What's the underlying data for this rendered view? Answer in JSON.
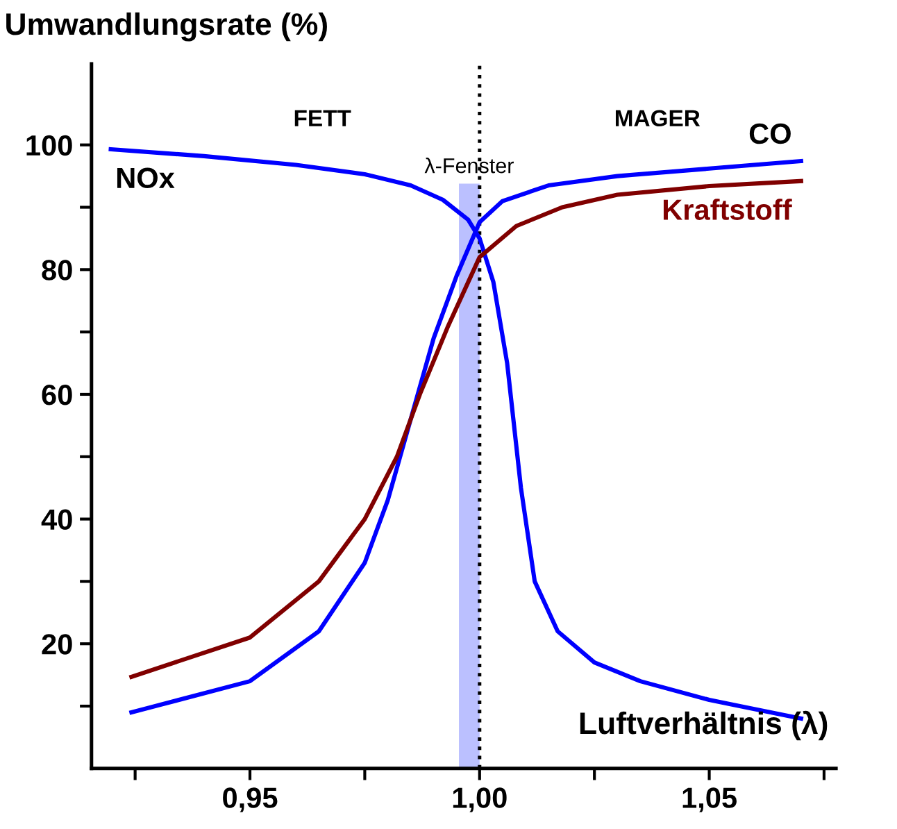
{
  "chart_data": {
    "type": "line",
    "ylabel": "Umwandlungsrate (%)",
    "xlabel": "Luftverhältnis (λ)",
    "xlim": [
      0.9155,
      1.0776
    ],
    "ylim": [
      0,
      113
    ],
    "xticks": [
      {
        "value": 0.925,
        "label": null
      },
      {
        "value": 0.95,
        "label": "0,95"
      },
      {
        "value": 0.975,
        "label": null
      },
      {
        "value": 1.0,
        "label": "1,00"
      },
      {
        "value": 1.025,
        "label": null
      },
      {
        "value": 1.05,
        "label": "1,05"
      },
      {
        "value": 1.075,
        "label": null
      }
    ],
    "yticks": [
      {
        "value": 10,
        "label": null
      },
      20,
      {
        "value": 30,
        "label": null
      },
      40,
      {
        "value": 50,
        "label": null
      },
      60,
      {
        "value": 70,
        "label": null
      },
      80,
      {
        "value": 90,
        "label": null
      },
      100
    ],
    "grid": false,
    "legend": false,
    "marker": "none",
    "line_style": "solid",
    "series": [
      {
        "name": "NOx",
        "color": "#0000ff",
        "x": [
          0.9197,
          0.94,
          0.96,
          0.975,
          0.985,
          0.992,
          0.9975,
          1.0,
          1.003,
          1.006,
          1.009,
          1.012,
          1.017,
          1.025,
          1.035,
          1.05,
          1.07
        ],
        "values": [
          99.3,
          98.2,
          96.8,
          95.3,
          93.5,
          91.2,
          88,
          85,
          78,
          65,
          45,
          30,
          22,
          17,
          14,
          11,
          8
        ]
      },
      {
        "name": "CO",
        "color": "#0000ff",
        "x": [
          0.9242,
          0.95,
          0.965,
          0.975,
          0.98,
          0.985,
          0.99,
          0.995,
          1.0,
          1.005,
          1.015,
          1.03,
          1.05,
          1.07
        ],
        "values": [
          9,
          14,
          22,
          33,
          43,
          56,
          69,
          79,
          87.6,
          91,
          93.5,
          95,
          96.2,
          97.4
        ]
      },
      {
        "name": "Kraftstoff",
        "color": "#800000",
        "x": [
          0.9242,
          0.95,
          0.965,
          0.975,
          0.982,
          0.987,
          0.993,
          1.0,
          1.008,
          1.018,
          1.03,
          1.05,
          1.07
        ],
        "values": [
          14.7,
          21,
          30,
          40,
          50,
          60,
          70.7,
          82,
          87,
          90,
          92,
          93.4,
          94.2
        ]
      }
    ],
    "ref_lines": [
      {
        "axis": "x",
        "value": 1.0,
        "label": null,
        "color": "#000000",
        "line_style": "dotted"
      }
    ],
    "bands": [
      {
        "axis": "x",
        "from": 0.9955,
        "to": 1.0,
        "label": "λ-Fenster",
        "color": "#aab0ff"
      }
    ],
    "annotations": [
      "FETT",
      "MAGER"
    ]
  }
}
